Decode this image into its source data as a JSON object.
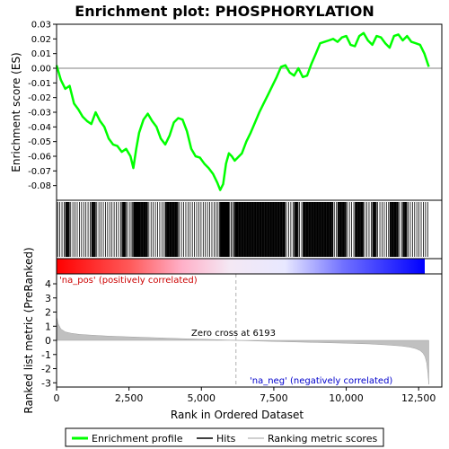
{
  "chart_data": [
    {
      "type": "line",
      "title": "Enrichment plot: PHOSPHORYLATION",
      "ylabel": "Enrichment score (ES)",
      "ylim": [
        -0.09,
        0.03
      ],
      "yticks": [
        0.03,
        0.02,
        0.01,
        0.0,
        -0.01,
        -0.02,
        -0.03,
        -0.04,
        -0.05,
        -0.06,
        -0.07,
        -0.08
      ],
      "ytick_labels": [
        "0.03",
        "0.02",
        "0.01",
        "0.00",
        "-0.01",
        "-0.02",
        "-0.03",
        "-0.04",
        "-0.05",
        "-0.06",
        "-0.07",
        "-0.08"
      ],
      "xlim": [
        0,
        13300
      ],
      "series": [
        {
          "color": "#00ff00",
          "x": [
            0,
            150,
            300,
            450,
            600,
            750,
            900,
            1050,
            1200,
            1350,
            1500,
            1650,
            1800,
            1950,
            2100,
            2250,
            2400,
            2550,
            2650,
            2750,
            2850,
            3000,
            3150,
            3300,
            3450,
            3600,
            3750,
            3900,
            4050,
            4200,
            4350,
            4500,
            4650,
            4800,
            4950,
            5100,
            5250,
            5400,
            5550,
            5650,
            5750,
            5850,
            5950,
            6050,
            6150,
            6250,
            6400,
            6550,
            6700,
            6850,
            7000,
            7150,
            7300,
            7450,
            7600,
            7750,
            7900,
            8050,
            8200,
            8350,
            8500,
            8650,
            8800,
            8950,
            9100,
            9250,
            9400,
            9550,
            9700,
            9850,
            10000,
            10150,
            10300,
            10450,
            10600,
            10750,
            10900,
            11050,
            11200,
            11350,
            11500,
            11650,
            11800,
            11950,
            12100,
            12250,
            12400,
            12550,
            12700,
            12850
          ],
          "y": [
            0.002,
            -0.008,
            -0.014,
            -0.012,
            -0.024,
            -0.028,
            -0.033,
            -0.036,
            -0.038,
            -0.03,
            -0.036,
            -0.04,
            -0.048,
            -0.052,
            -0.053,
            -0.057,
            -0.055,
            -0.06,
            -0.068,
            -0.055,
            -0.044,
            -0.035,
            -0.031,
            -0.036,
            -0.04,
            -0.048,
            -0.052,
            -0.046,
            -0.037,
            -0.034,
            -0.035,
            -0.043,
            -0.055,
            -0.06,
            -0.061,
            -0.065,
            -0.068,
            -0.072,
            -0.078,
            -0.083,
            -0.079,
            -0.065,
            -0.058,
            -0.06,
            -0.063,
            -0.061,
            -0.058,
            -0.05,
            -0.044,
            -0.037,
            -0.03,
            -0.024,
            -0.018,
            -0.012,
            -0.006,
            0.001,
            0.002,
            -0.003,
            -0.005,
            0.0,
            -0.006,
            -0.005,
            0.003,
            0.01,
            0.017,
            0.018,
            0.019,
            0.02,
            0.018,
            0.021,
            0.022,
            0.016,
            0.015,
            0.022,
            0.024,
            0.019,
            0.016,
            0.022,
            0.021,
            0.017,
            0.014,
            0.022,
            0.023,
            0.019,
            0.022,
            0.018,
            0.017,
            0.016,
            0.01,
            0.001
          ]
        }
      ]
    },
    {
      "type": "line",
      "ylabel": "Ranked list metric (PreRanked)",
      "xlabel": "Rank in Ordered Dataset",
      "ylim": [
        -3.3,
        4.7
      ],
      "yticks": [
        4,
        3,
        2,
        1,
        0,
        -1,
        -2,
        -3
      ],
      "ytick_labels": [
        "4",
        "3",
        "2",
        "1",
        "0",
        "-1",
        "-2",
        "-3"
      ],
      "xlim": [
        0,
        13300
      ],
      "xticks": [
        0,
        2500,
        5000,
        7500,
        10000,
        12500
      ],
      "xtick_labels": [
        "0",
        "2,500",
        "5,000",
        "7,500",
        "10,000",
        "12,500"
      ],
      "zero_cross": 6193,
      "annotations": [
        "Zero cross at 6193",
        "'na_pos' (positively correlated)",
        "'na_neg' (negatively correlated)"
      ],
      "series": [
        {
          "color": "#c0c0c0",
          "x": [
            0,
            50,
            150,
            300,
            500,
            800,
            1200,
            1800,
            2500,
            3500,
            4500,
            5500,
            6193,
            7000,
            8000,
            9000,
            10000,
            10800,
            11400,
            11900,
            12200,
            12400,
            12550,
            12650,
            12720,
            12780,
            12820,
            12850
          ],
          "y": [
            1.7,
            1.2,
            0.8,
            0.6,
            0.5,
            0.42,
            0.37,
            0.3,
            0.25,
            0.18,
            0.11,
            0.05,
            0.0,
            -0.05,
            -0.1,
            -0.15,
            -0.2,
            -0.25,
            -0.32,
            -0.4,
            -0.48,
            -0.58,
            -0.72,
            -0.9,
            -1.15,
            -1.6,
            -2.3,
            -3.1
          ]
        }
      ]
    }
  ],
  "legend": {
    "items": [
      {
        "label": "Enrichment profile",
        "color": "#00ff00"
      },
      {
        "label": "Hits",
        "color": "#000000"
      },
      {
        "label": "Ranking metric scores",
        "color": "#c0c0c0"
      }
    ]
  }
}
